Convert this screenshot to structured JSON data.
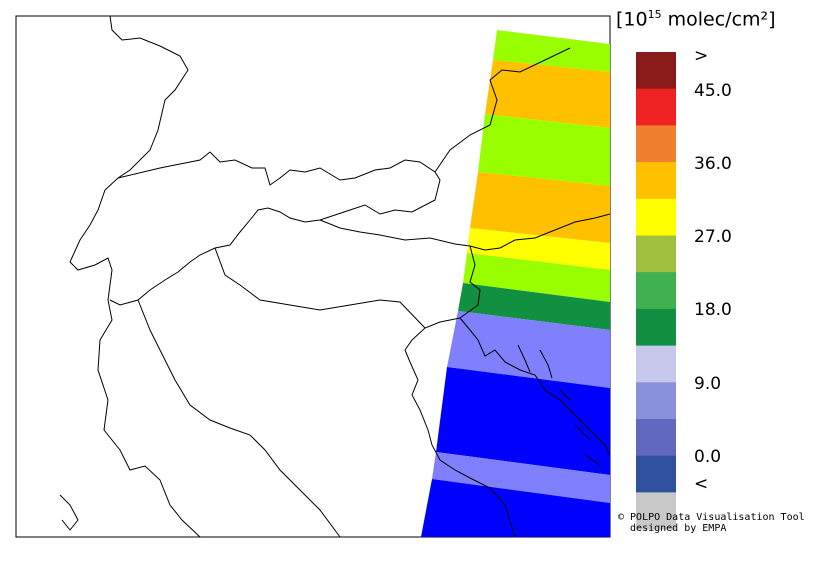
{
  "legend": {
    "unit_prefix": "[10",
    "unit_exponent": "15",
    "unit_suffix": " molec/cm²]",
    "tick_labels": [
      ">",
      "45.0",
      "36.0",
      "27.0",
      "18.0",
      "9.0",
      "0.0",
      "<"
    ],
    "colors": [
      "#8b1a1a",
      "#ee2222",
      "#f08030",
      "#ffc000",
      "#ffff00",
      "#a0c040",
      "#40b050",
      "#109040",
      "#c8c8ec",
      "#8a90dc",
      "#6068c0",
      "#3050a0",
      "#c8c8c8"
    ]
  },
  "credits": {
    "line1": "© POLPO Data Visualisation Tool",
    "line2": "  designed by EMPA"
  }
}
